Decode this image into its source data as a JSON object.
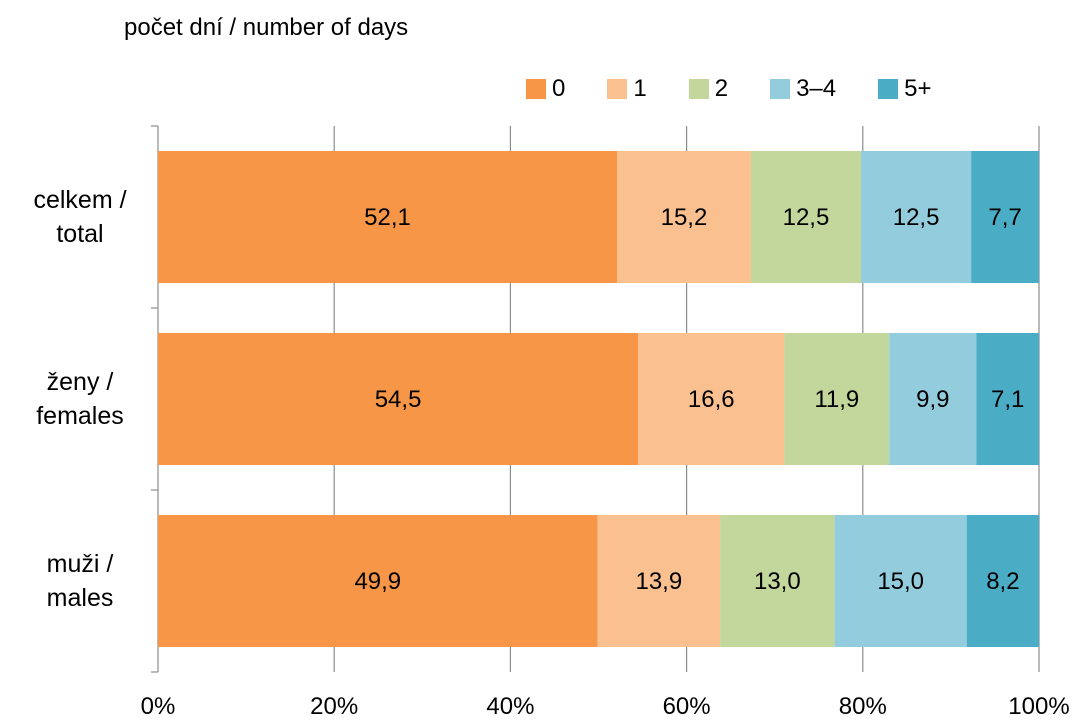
{
  "chart_data": {
    "type": "bar",
    "orientation": "horizontal",
    "stacked": "percent",
    "subtitle": "počet dní / number of days",
    "categories": [
      "celkem / total",
      "ženy / females",
      "muži / males"
    ],
    "category_lines": [
      [
        "celkem /",
        "total"
      ],
      [
        "ženy /",
        "females"
      ],
      [
        "muži /",
        "males"
      ]
    ],
    "series": [
      {
        "name": "0",
        "color": "#f79646",
        "values": [
          52.1,
          54.5,
          49.9
        ],
        "labels": [
          "52,1",
          "54,5",
          "49,9"
        ]
      },
      {
        "name": "1",
        "color": "#fac090",
        "values": [
          15.2,
          16.6,
          13.9
        ],
        "labels": [
          "15,2",
          "16,6",
          "13,9"
        ]
      },
      {
        "name": "2",
        "color": "#c3d69b",
        "values": [
          12.5,
          11.9,
          13.0
        ],
        "labels": [
          "12,5",
          "11,9",
          "13,0"
        ]
      },
      {
        "name": "3–4",
        "color": "#93cddd",
        "values": [
          12.5,
          9.9,
          15.0
        ],
        "labels": [
          "12,5",
          "9,9",
          "15,0"
        ]
      },
      {
        "name": "5+",
        "color": "#4bacc6",
        "values": [
          7.7,
          7.1,
          8.2
        ],
        "labels": [
          "7,7",
          "7,1",
          "8,2"
        ]
      }
    ],
    "x_ticks": [
      "0%",
      "20%",
      "40%",
      "60%",
      "80%",
      "100%"
    ],
    "xlim": [
      0,
      100
    ],
    "grid": true,
    "legend_position": "top-right"
  }
}
